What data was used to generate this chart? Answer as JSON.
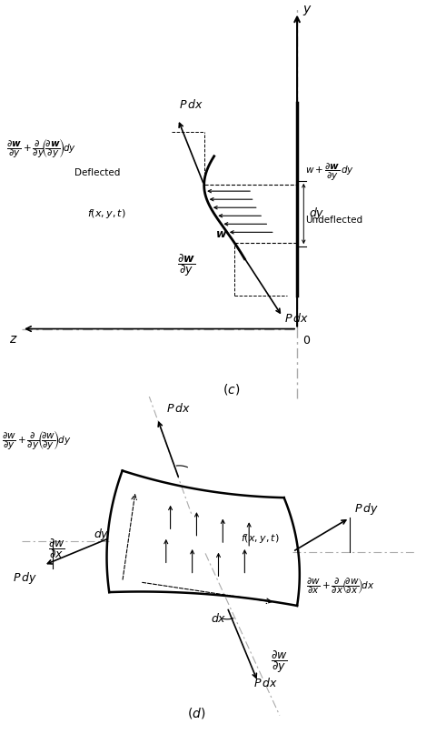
{
  "fig_width": 4.81,
  "fig_height": 8.07,
  "dpi": 100,
  "bg_color": "#ffffff",
  "lc": "#000000",
  "dc": "#aaaaaa",
  "gray": "#666666"
}
